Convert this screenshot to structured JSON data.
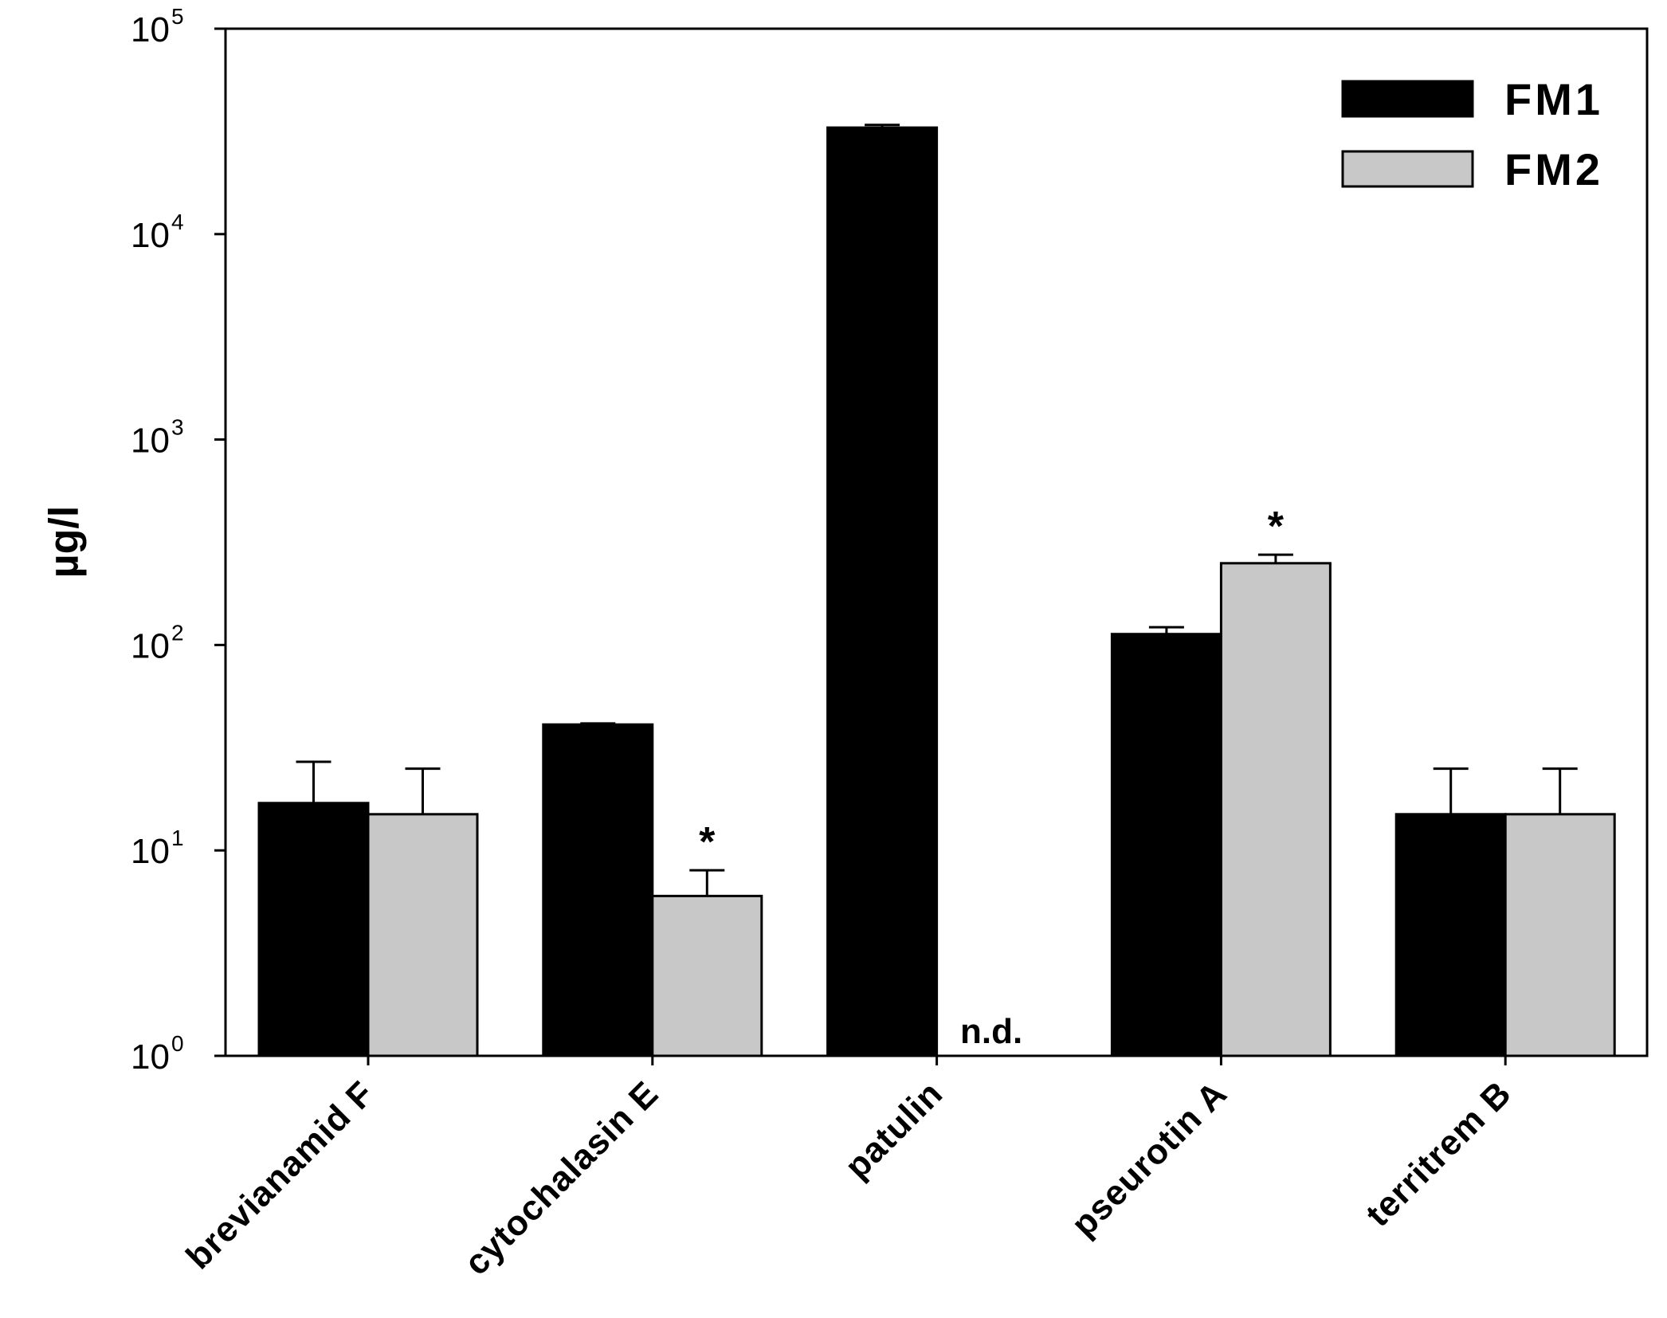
{
  "chart_data": {
    "type": "bar",
    "scale": "log",
    "title": "",
    "xlabel": "",
    "ylabel": "µg/l",
    "ylim": [
      1,
      100000
    ],
    "y_ticks": [
      {
        "base": "10",
        "exp": "0",
        "value": 1
      },
      {
        "base": "10",
        "exp": "1",
        "value": 10
      },
      {
        "base": "10",
        "exp": "2",
        "value": 100
      },
      {
        "base": "10",
        "exp": "3",
        "value": 1000
      },
      {
        "base": "10",
        "exp": "4",
        "value": 10000
      },
      {
        "base": "10",
        "exp": "5",
        "value": 100000
      }
    ],
    "categories": [
      "brevianamid F",
      "cytochalasin E",
      "patulin",
      "pseurotin A",
      "territrem B"
    ],
    "series": [
      {
        "name": "FM1",
        "color": "#000000",
        "values": [
          17,
          41,
          33000,
          113,
          15
        ],
        "errors": [
          27,
          41.5,
          34000,
          122,
          25
        ]
      },
      {
        "name": "FM2",
        "color": "#c8c8c8",
        "values": [
          15,
          6,
          null,
          250,
          15
        ],
        "errors": [
          25,
          8,
          null,
          275,
          25
        ]
      }
    ],
    "legend": {
      "position": "top-right",
      "entries": [
        "FM1",
        "FM2"
      ]
    },
    "annotations": [
      {
        "category": "cytochalasin E",
        "series": "FM2",
        "text": "*"
      },
      {
        "category": "pseurotin A",
        "series": "FM2",
        "text": "*"
      },
      {
        "category": "patulin",
        "series": "FM2",
        "text": "n.d."
      }
    ]
  }
}
